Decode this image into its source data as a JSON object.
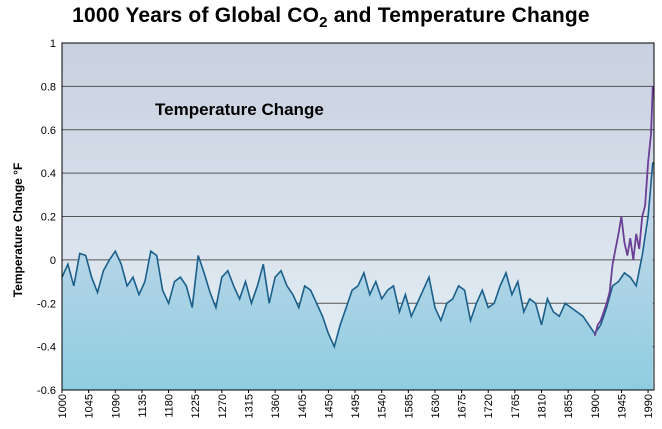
{
  "title": {
    "prefix": "1000 Years of Global CO",
    "subscript": "2",
    "suffix": " and Temperature Change"
  },
  "chart_data": {
    "type": "line",
    "title": "1000 Years of Global CO2 and Temperature Change",
    "ylabel": "Temperature Change °F",
    "xlabel": "",
    "annotation": "Temperature Change",
    "ylim": [
      -0.6,
      1.0
    ],
    "xlim": [
      1000,
      2000
    ],
    "yticks": [
      "-0.6",
      "-0.4",
      "-0.2",
      "0",
      "0.2",
      "0.4",
      "0.6",
      "0.8",
      "1"
    ],
    "xticks": [
      "1000",
      "1045",
      "1090",
      "1135",
      "1180",
      "1225",
      "1270",
      "1315",
      "1360",
      "1405",
      "1450",
      "1495",
      "1540",
      "1585",
      "1630",
      "1675",
      "1720",
      "1765",
      "1810",
      "1855",
      "1900",
      "1945",
      "1990"
    ],
    "grid": true,
    "colors": {
      "proxy": "#1a5f8a",
      "instrumental": "#6b3f96",
      "fill_top": "#cfd9ec",
      "fill_bottom": "#8ecde0",
      "bg_top": "#c9d0e0",
      "bg_bottom": "#e6f1f6"
    },
    "series": [
      {
        "x": [
          1000,
          1010,
          1020,
          1030,
          1040,
          1050,
          1060,
          1070,
          1080,
          1090,
          1100,
          1110,
          1120,
          1130,
          1140,
          1150,
          1160,
          1170,
          1180,
          1190,
          1200,
          1210,
          1220,
          1230,
          1240,
          1250,
          1260,
          1270,
          1280,
          1290,
          1300,
          1310,
          1320,
          1330,
          1340,
          1350,
          1360,
          1370,
          1380,
          1390,
          1400,
          1410,
          1420,
          1430,
          1440,
          1450,
          1460,
          1470,
          1480,
          1490,
          1500,
          1510,
          1520,
          1530,
          1540,
          1550,
          1560,
          1570,
          1580,
          1590,
          1600,
          1610,
          1620,
          1630,
          1640,
          1650,
          1660,
          1670,
          1680,
          1690,
          1700,
          1710,
          1720,
          1730,
          1740,
          1750,
          1760,
          1770,
          1780,
          1790,
          1800,
          1810,
          1820,
          1830,
          1840,
          1850,
          1860,
          1870,
          1880,
          1890,
          1900,
          1910,
          1920,
          1930,
          1940,
          1950,
          1960,
          1970,
          1980,
          1990,
          1998
        ],
        "values": [
          -0.08,
          -0.02,
          -0.12,
          0.03,
          0.02,
          -0.08,
          -0.15,
          -0.05,
          0.0,
          0.04,
          -0.02,
          -0.12,
          -0.08,
          -0.16,
          -0.1,
          0.04,
          0.02,
          -0.14,
          -0.2,
          -0.1,
          -0.08,
          -0.12,
          -0.22,
          0.02,
          -0.06,
          -0.15,
          -0.22,
          -0.08,
          -0.05,
          -0.12,
          -0.18,
          -0.1,
          -0.2,
          -0.12,
          -0.02,
          -0.2,
          -0.08,
          -0.05,
          -0.12,
          -0.16,
          -0.22,
          -0.12,
          -0.14,
          -0.2,
          -0.26,
          -0.34,
          -0.4,
          -0.3,
          -0.22,
          -0.14,
          -0.12,
          -0.06,
          -0.16,
          -0.1,
          -0.18,
          -0.14,
          -0.12,
          -0.24,
          -0.16,
          -0.26,
          -0.2,
          -0.14,
          -0.08,
          -0.22,
          -0.28,
          -0.2,
          -0.18,
          -0.12,
          -0.14,
          -0.28,
          -0.2,
          -0.14,
          -0.22,
          -0.2,
          -0.12,
          -0.06,
          -0.16,
          -0.1,
          -0.24,
          -0.18,
          -0.2,
          -0.3,
          -0.18,
          -0.24,
          -0.26,
          -0.2,
          -0.22,
          -0.24,
          -0.26,
          -0.3,
          -0.34,
          -0.3,
          -0.22,
          -0.12,
          -0.1,
          -0.06,
          -0.08,
          -0.12,
          0.02,
          0.2,
          0.45
        ]
      },
      {
        "x": [
          1900,
          1905,
          1910,
          1915,
          1920,
          1925,
          1930,
          1935,
          1940,
          1945,
          1950,
          1955,
          1960,
          1965,
          1970,
          1975,
          1980,
          1985,
          1990,
          1995,
          1998
        ],
        "values": [
          -0.35,
          -0.3,
          -0.28,
          -0.24,
          -0.2,
          -0.15,
          -0.02,
          0.05,
          0.12,
          0.2,
          0.08,
          0.02,
          0.1,
          0.0,
          0.12,
          0.05,
          0.2,
          0.25,
          0.45,
          0.58,
          0.8
        ]
      }
    ]
  }
}
